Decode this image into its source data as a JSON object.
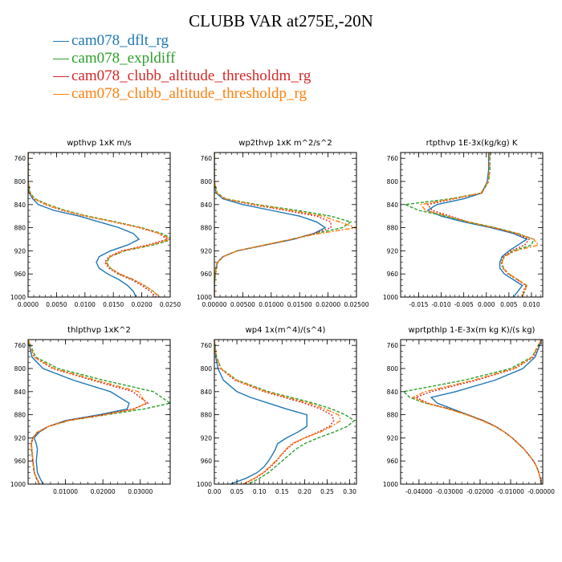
{
  "figure": {
    "title": "CLUBB VAR at275E,-20N",
    "legend": [
      {
        "label": "cam078_dflt_rg",
        "color": "#1f77b4",
        "dash": "none"
      },
      {
        "label": "cam078_expldiff",
        "color": "#2ca02c",
        "dash": "4,2"
      },
      {
        "label": "cam078_clubb_altitude_thresholdm_rg",
        "color": "#d62728",
        "dash": "2,2"
      },
      {
        "label": "cam078_clubb_altitude_thresholdp_rg",
        "color": "#ff7f0e",
        "dash": "6,2,2,2"
      }
    ]
  },
  "chart_data": [
    {
      "type": "line",
      "title": "wpthvp  1xK m/s",
      "xlim": [
        0,
        0.025
      ],
      "ylim": [
        1000,
        750
      ],
      "xticks": [
        0,
        0.005,
        0.01,
        0.015,
        0.02,
        0.025
      ],
      "xticklabels": [
        "0.0000",
        "0.0050",
        "0.0100",
        "0.0150",
        "0.0200",
        "0.0250"
      ],
      "yticks": [
        760,
        800,
        840,
        880,
        920,
        960,
        1000
      ],
      "y": [
        750,
        780,
        800,
        820,
        830,
        840,
        850,
        860,
        870,
        880,
        890,
        900,
        910,
        920,
        930,
        940,
        950,
        960,
        970,
        980,
        990,
        1000
      ],
      "series": [
        {
          "name": "cam078_dflt_rg",
          "values": [
            0,
            0,
            0,
            0.0002,
            0.0008,
            0.0018,
            0.0045,
            0.009,
            0.0125,
            0.016,
            0.0185,
            0.0195,
            0.0175,
            0.0145,
            0.0125,
            0.012,
            0.0125,
            0.014,
            0.016,
            0.0175,
            0.0185,
            0.019
          ]
        },
        {
          "name": "cam078_expldiff",
          "values": [
            0,
            0,
            0,
            0.0004,
            0.0012,
            0.0035,
            0.0065,
            0.0105,
            0.0155,
            0.02,
            0.0235,
            0.0255,
            0.022,
            0.017,
            0.0145,
            0.0138,
            0.0145,
            0.016,
            0.0185,
            0.0205,
            0.022,
            0.023
          ]
        },
        {
          "name": "cam078_clubb_altitude_thresholdm_rg",
          "values": [
            0,
            0,
            0,
            0.0003,
            0.001,
            0.003,
            0.006,
            0.01,
            0.015,
            0.0195,
            0.023,
            0.0245,
            0.021,
            0.0165,
            0.0142,
            0.0135,
            0.0142,
            0.0158,
            0.0182,
            0.02,
            0.0215,
            0.0225
          ]
        },
        {
          "name": "cam078_clubb_altitude_thresholdp_rg",
          "values": [
            0,
            0,
            0,
            0.0003,
            0.0011,
            0.0032,
            0.0062,
            0.0102,
            0.0152,
            0.0198,
            0.0232,
            0.025,
            0.0215,
            0.0168,
            0.0144,
            0.0137,
            0.0144,
            0.0162,
            0.0186,
            0.0205,
            0.022,
            0.0232
          ]
        }
      ]
    },
    {
      "type": "line",
      "title": "wp2thvp  1xK m^2/s^2",
      "xlim": [
        0,
        0.025
      ],
      "ylim": [
        1000,
        750
      ],
      "xticks": [
        0,
        0.005,
        0.01,
        0.015,
        0.02,
        0.025
      ],
      "xticklabels": [
        "0.00000",
        "0.00500",
        "0.01000",
        "0.01500",
        "0.02000",
        "0.02500"
      ],
      "yticks": [
        760,
        800,
        840,
        880,
        920,
        960,
        1000
      ],
      "y": [
        750,
        800,
        820,
        830,
        840,
        850,
        860,
        870,
        880,
        890,
        900,
        910,
        920,
        930,
        940,
        960,
        980,
        1000
      ],
      "series": [
        {
          "name": "cam078_dflt_rg",
          "values": [
            0,
            0,
            0.0003,
            0.0015,
            0.005,
            0.01,
            0.015,
            0.018,
            0.0195,
            0.0175,
            0.014,
            0.009,
            0.004,
            0.0015,
            0.0005,
            0.0001,
            0,
            0
          ]
        },
        {
          "name": "cam078_expldiff",
          "values": [
            0,
            0,
            0.0005,
            0.002,
            0.0075,
            0.0145,
            0.0205,
            0.024,
            0.0225,
            0.0178,
            0.0135,
            0.0088,
            0.004,
            0.0016,
            0.0006,
            0.0002,
            0,
            0
          ]
        },
        {
          "name": "cam078_clubb_altitude_thresholdm_rg",
          "values": [
            0,
            0,
            0.0004,
            0.0018,
            0.0065,
            0.0125,
            0.018,
            0.0205,
            0.0205,
            0.0175,
            0.0138,
            0.009,
            0.0041,
            0.0016,
            0.0005,
            0.0001,
            0,
            0
          ]
        },
        {
          "name": "cam078_clubb_altitude_thresholdp_rg",
          "values": [
            0,
            0,
            0.0004,
            0.0019,
            0.007,
            0.0135,
            0.019,
            0.022,
            0.025,
            0.0185,
            0.0135,
            0.0087,
            0.004,
            0.0016,
            0.0005,
            0.0001,
            0,
            0
          ]
        }
      ]
    },
    {
      "type": "line",
      "title": "rtpthvp  1E-3x(kg/kg) K",
      "xlim": [
        -0.019,
        0.0125
      ],
      "ylim": [
        1000,
        750
      ],
      "xticks": [
        -0.015,
        -0.01,
        -0.005,
        0,
        0.005,
        0.01
      ],
      "xticklabels": [
        "-0.015",
        "-0.010",
        "-0.005",
        "0.000",
        "0.005",
        "0.010"
      ],
      "yticks": [
        760,
        800,
        840,
        880,
        920,
        960,
        1000
      ],
      "y": [
        750,
        780,
        800,
        820,
        830,
        840,
        850,
        860,
        870,
        880,
        890,
        900,
        910,
        920,
        930,
        940,
        950,
        960,
        970,
        980,
        990,
        1000
      ],
      "series": [
        {
          "name": "cam078_dflt_rg",
          "values": [
            0.0005,
            0.0005,
            0.0002,
            -0.001,
            -0.005,
            -0.011,
            -0.013,
            -0.01,
            -0.005,
            0.001,
            0.006,
            0.009,
            0.007,
            0.005,
            0.0035,
            0.003,
            0.003,
            0.004,
            0.006,
            0.008,
            0.007,
            0.006
          ]
        },
        {
          "name": "cam078_expldiff",
          "values": [
            0.0008,
            0.0008,
            0.0005,
            -0.001,
            -0.008,
            -0.018,
            -0.015,
            -0.009,
            -0.004,
            0.002,
            0.007,
            0.0105,
            0.01,
            0.006,
            0.004,
            0.0035,
            0.0038,
            0.005,
            0.007,
            0.009,
            0.0085,
            0.008
          ]
        },
        {
          "name": "cam078_clubb_altitude_thresholdm_rg",
          "values": [
            0.0007,
            0.0007,
            0.0004,
            -0.001,
            -0.007,
            -0.013,
            -0.012,
            -0.008,
            -0.004,
            0.0015,
            0.0065,
            0.0095,
            0.0085,
            0.0055,
            0.0038,
            0.0033,
            0.0036,
            0.0048,
            0.0068,
            0.0088,
            0.0082,
            0.0078
          ]
        },
        {
          "name": "cam078_clubb_altitude_thresholdp_rg",
          "values": [
            0.0007,
            0.0007,
            0.0004,
            -0.0012,
            -0.0075,
            -0.0145,
            -0.0135,
            -0.0085,
            -0.0042,
            0.0018,
            0.0068,
            0.0105,
            0.0115,
            0.0065,
            0.004,
            0.0034,
            0.0037,
            0.005,
            0.007,
            0.009,
            0.0084,
            0.008
          ]
        }
      ]
    },
    {
      "type": "line",
      "title": "thlpthvp  1xK^2",
      "xlim": [
        0,
        0.038
      ],
      "ylim": [
        1000,
        750
      ],
      "xticks": [
        0.01,
        0.02,
        0.03
      ],
      "xticklabels": [
        "0.01000",
        "0.02000",
        "0.03000"
      ],
      "yticks": [
        760,
        800,
        840,
        880,
        920,
        960,
        1000
      ],
      "y": [
        750,
        780,
        800,
        820,
        840,
        860,
        870,
        880,
        890,
        900,
        910,
        920,
        930,
        940,
        960,
        980,
        990,
        1000
      ],
      "series": [
        {
          "name": "cam078_dflt_rg",
          "values": [
            0,
            0.001,
            0.004,
            0.012,
            0.022,
            0.027,
            0.0265,
            0.019,
            0.01,
            0.0055,
            0.003,
            0.0016,
            0.0022,
            0.0025,
            0.0022,
            0.0025,
            0.0032,
            0.004
          ]
        },
        {
          "name": "cam078_expldiff",
          "values": [
            0,
            0.002,
            0.008,
            0.02,
            0.0335,
            0.038,
            0.031,
            0.021,
            0.011,
            0.0055,
            0.0025,
            0.0012,
            0.0008,
            0.0009,
            0.0012,
            0.0016,
            0.0022,
            0.003
          ]
        },
        {
          "name": "cam078_clubb_altitude_thresholdm_rg",
          "values": [
            0,
            0.0015,
            0.0065,
            0.017,
            0.028,
            0.032,
            0.028,
            0.02,
            0.0105,
            0.0055,
            0.0026,
            0.0013,
            0.0009,
            0.001,
            0.0013,
            0.0017,
            0.0023,
            0.0031
          ]
        },
        {
          "name": "cam078_clubb_altitude_thresholdp_rg",
          "values": [
            0,
            0.0016,
            0.007,
            0.018,
            0.0295,
            0.0315,
            0.0285,
            0.0205,
            0.0108,
            0.0055,
            0.0026,
            0.0013,
            0.0009,
            0.001,
            0.0013,
            0.0017,
            0.0023,
            0.0031
          ]
        }
      ]
    },
    {
      "type": "line",
      "title": "wp4  1x(m^4)/(s^4)",
      "xlim": [
        0,
        0.315
      ],
      "ylim": [
        1000,
        750
      ],
      "xticks": [
        0,
        0.05,
        0.1,
        0.15,
        0.2,
        0.25,
        0.3
      ],
      "xticklabels": [
        "0.00",
        "0.05",
        "0.10",
        "0.15",
        "0.20",
        "0.25",
        "0.30"
      ],
      "yticks": [
        760,
        800,
        840,
        880,
        920,
        960,
        1000
      ],
      "y": [
        750,
        780,
        800,
        820,
        840,
        850,
        860,
        870,
        880,
        890,
        900,
        910,
        920,
        930,
        940,
        950,
        960,
        970,
        980,
        990,
        1000
      ],
      "series": [
        {
          "name": "cam078_dflt_rg",
          "values": [
            0,
            0.003,
            0.008,
            0.02,
            0.05,
            0.08,
            0.12,
            0.16,
            0.205,
            0.205,
            0.205,
            0.185,
            0.16,
            0.14,
            0.135,
            0.128,
            0.12,
            0.11,
            0.095,
            0.07,
            0.035
          ]
        },
        {
          "name": "cam078_expldiff",
          "values": [
            0,
            0.005,
            0.015,
            0.05,
            0.12,
            0.17,
            0.22,
            0.26,
            0.29,
            0.31,
            0.295,
            0.265,
            0.23,
            0.2,
            0.18,
            0.165,
            0.15,
            0.135,
            0.12,
            0.1,
            0.075
          ]
        },
        {
          "name": "cam078_clubb_altitude_thresholdm_rg",
          "values": [
            0,
            0.004,
            0.013,
            0.045,
            0.11,
            0.155,
            0.2,
            0.235,
            0.26,
            0.265,
            0.255,
            0.23,
            0.2,
            0.175,
            0.16,
            0.148,
            0.138,
            0.125,
            0.11,
            0.09,
            0.065
          ]
        },
        {
          "name": "cam078_clubb_altitude_thresholdp_rg",
          "values": [
            0,
            0.004,
            0.014,
            0.048,
            0.115,
            0.162,
            0.21,
            0.245,
            0.275,
            0.28,
            0.26,
            0.235,
            0.2,
            0.172,
            0.158,
            0.147,
            0.136,
            0.122,
            0.108,
            0.088,
            0.063
          ]
        }
      ]
    },
    {
      "type": "line",
      "title": "wprtpthlp  1-E-3x(m kg K)/(s kg)",
      "xlim": [
        -0.046,
        0.0005
      ],
      "ylim": [
        1000,
        750
      ],
      "xticks": [
        -0.04,
        -0.03,
        -0.02,
        -0.01,
        0
      ],
      "xticklabels": [
        "-0.04000",
        "-0.03000",
        "-0.02000",
        "-0.01000",
        "-0.00000"
      ],
      "yticks": [
        760,
        800,
        840,
        880,
        920,
        960,
        1000
      ],
      "y": [
        750,
        760,
        780,
        800,
        820,
        840,
        850,
        860,
        870,
        880,
        890,
        900,
        910,
        920,
        930,
        940,
        950,
        960,
        970,
        980,
        990,
        1000
      ],
      "series": [
        {
          "name": "cam078_dflt_rg",
          "values": [
            0,
            -0.0005,
            -0.002,
            -0.006,
            -0.015,
            -0.028,
            -0.036,
            -0.034,
            -0.029,
            -0.024,
            -0.019,
            -0.015,
            -0.012,
            -0.0095,
            -0.0075,
            -0.0055,
            -0.004,
            -0.0025,
            -0.0015,
            -0.0008,
            -0.0003,
            0
          ]
        },
        {
          "name": "cam078_expldiff",
          "values": [
            0,
            -0.001,
            -0.003,
            -0.01,
            -0.025,
            -0.045,
            -0.043,
            -0.038,
            -0.03,
            -0.024,
            -0.019,
            -0.015,
            -0.012,
            -0.0095,
            -0.0074,
            -0.0055,
            -0.004,
            -0.0025,
            -0.0015,
            -0.0008,
            -0.0003,
            0
          ]
        },
        {
          "name": "cam078_clubb_altitude_thresholdm_rg",
          "values": [
            0,
            -0.0008,
            -0.0025,
            -0.0085,
            -0.021,
            -0.036,
            -0.041,
            -0.037,
            -0.03,
            -0.024,
            -0.019,
            -0.015,
            -0.012,
            -0.0095,
            -0.0074,
            -0.0055,
            -0.004,
            -0.0025,
            -0.0015,
            -0.0008,
            -0.0003,
            0
          ]
        },
        {
          "name": "cam078_clubb_altitude_thresholdp_rg",
          "values": [
            0,
            -0.0009,
            -0.0028,
            -0.009,
            -0.022,
            -0.038,
            -0.042,
            -0.0375,
            -0.0305,
            -0.0245,
            -0.0195,
            -0.0152,
            -0.012,
            -0.0095,
            -0.0074,
            -0.0055,
            -0.004,
            -0.0025,
            -0.0015,
            -0.0008,
            -0.0003,
            0
          ]
        }
      ]
    }
  ]
}
